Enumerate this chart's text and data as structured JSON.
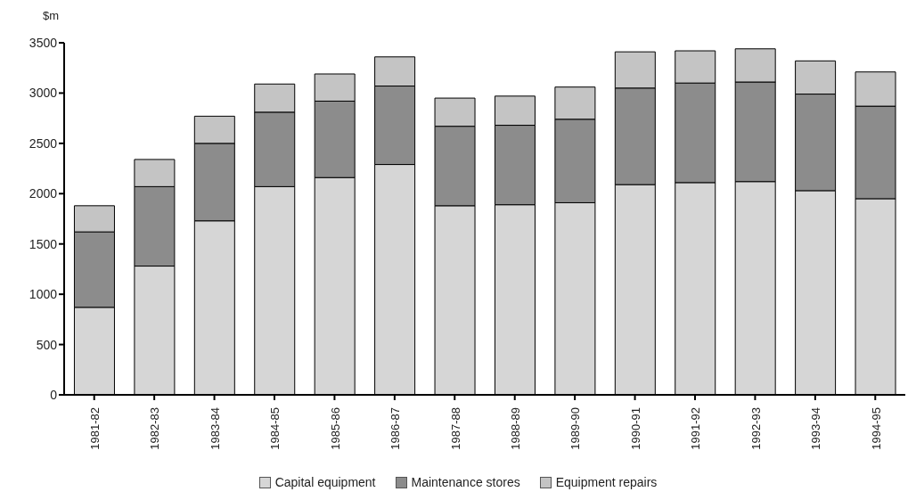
{
  "chart_data": {
    "type": "bar",
    "ylabel": "$m",
    "stacked": true,
    "legend": "bottom",
    "categories": [
      "1981-82",
      "1982-83",
      "1983-84",
      "1984-85",
      "1985-86",
      "1986-87",
      "1987-88",
      "1988-89",
      "1989-90",
      "1990-91",
      "1991-92",
      "1992-93",
      "1993-94",
      "1994-95"
    ],
    "series": [
      {
        "name": "Capital equipment",
        "color": "#d6d6d6",
        "values": [
          870,
          1280,
          1730,
          2070,
          2160,
          2290,
          1880,
          1890,
          1910,
          2090,
          2110,
          2120,
          2030,
          1950
        ]
      },
      {
        "name": "Maintenance stores",
        "color": "#8c8c8c",
        "values": [
          750,
          790,
          770,
          740,
          760,
          780,
          790,
          790,
          830,
          960,
          990,
          990,
          960,
          920
        ]
      },
      {
        "name": "Equipment repairs",
        "color": "#c4c4c4",
        "values": [
          260,
          270,
          270,
          280,
          270,
          290,
          280,
          290,
          320,
          360,
          320,
          330,
          330,
          340
        ]
      }
    ],
    "ylim": [
      0,
      3500
    ],
    "yticks": [
      0,
      500,
      1000,
      1500,
      2000,
      2500,
      3000,
      3500
    ]
  }
}
